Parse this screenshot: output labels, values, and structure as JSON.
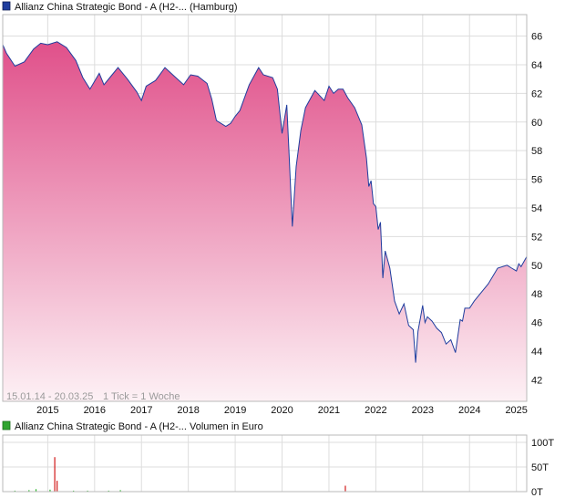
{
  "chart_data": [
    {
      "type": "area",
      "legend": "Allianz China Strategic Bond - A (H2-... (Hamburg)",
      "footer_range": "15.01.14 - 20.03.25",
      "footer_tick": "1 Tick = 1 Woche",
      "x_ticks": [
        "2015",
        "2016",
        "2017",
        "2018",
        "2019",
        "2020",
        "2021",
        "2022",
        "2023",
        "2024",
        "2025"
      ],
      "y_ticks": [
        "66",
        "64",
        "62",
        "60",
        "58",
        "56",
        "54",
        "52",
        "50",
        "48",
        "46",
        "44",
        "42"
      ],
      "ylim": [
        40.5,
        67.5
      ],
      "grid": true,
      "colors": {
        "line": "#1f3d9e",
        "fill_top": "#e0508a",
        "fill_bottom": "#fdf1f5",
        "legend_swatch": "#1f3d9e"
      },
      "series": [
        {
          "x": [
            2014.04,
            2014.12,
            2014.3,
            2014.5,
            2014.7,
            2014.85,
            2015.0,
            2015.2,
            2015.4,
            2015.6,
            2015.75,
            2015.9,
            2016.1,
            2016.2,
            2016.35,
            2016.5,
            2016.7,
            2016.9,
            2017.0,
            2017.1,
            2017.3,
            2017.5,
            2017.7,
            2017.9,
            2018.05,
            2018.2,
            2018.4,
            2018.5,
            2018.6,
            2018.8,
            2018.9,
            2019.0,
            2019.1,
            2019.3,
            2019.5,
            2019.6,
            2019.8,
            2019.9,
            2020.0,
            2020.05,
            2020.1,
            2020.15,
            2020.22,
            2020.3,
            2020.4,
            2020.5,
            2020.7,
            2020.9,
            2021.0,
            2021.1,
            2021.2,
            2021.3,
            2021.4,
            2021.55,
            2021.7,
            2021.8,
            2021.85,
            2021.9,
            2021.95,
            2022.0,
            2022.05,
            2022.1,
            2022.15,
            2022.2,
            2022.3,
            2022.4,
            2022.5,
            2022.6,
            2022.7,
            2022.8,
            2022.85,
            2022.9,
            2022.95,
            2023.0,
            2023.05,
            2023.1,
            2023.2,
            2023.3,
            2023.4,
            2023.5,
            2023.6,
            2023.7,
            2023.8,
            2023.85,
            2023.9,
            2024.0,
            2024.1,
            2024.2,
            2024.4,
            2024.6,
            2024.8,
            2024.9,
            2025.0,
            2025.05,
            2025.1,
            2025.15,
            2025.22
          ],
          "y": [
            65.4,
            64.8,
            63.9,
            64.2,
            65.1,
            65.5,
            65.4,
            65.6,
            65.2,
            64.3,
            63.1,
            62.3,
            63.4,
            62.6,
            63.2,
            63.8,
            63.0,
            62.1,
            61.5,
            62.5,
            62.9,
            63.8,
            63.2,
            62.6,
            63.3,
            63.2,
            62.7,
            61.6,
            60.1,
            59.7,
            59.9,
            60.4,
            60.8,
            62.6,
            63.8,
            63.3,
            63.1,
            62.3,
            59.2,
            60.2,
            61.2,
            57.8,
            52.7,
            56.9,
            59.4,
            61.0,
            62.2,
            61.5,
            62.5,
            62.0,
            62.3,
            62.3,
            61.7,
            61.0,
            59.8,
            57.5,
            55.5,
            55.9,
            54.3,
            54.1,
            52.5,
            53.0,
            49.1,
            51.0,
            49.8,
            47.5,
            46.6,
            47.3,
            45.8,
            45.5,
            43.2,
            45.4,
            46.3,
            47.2,
            46.0,
            46.4,
            46.1,
            45.6,
            45.3,
            44.5,
            44.8,
            43.9,
            46.2,
            46.1,
            47.0,
            47.0,
            47.5,
            47.9,
            48.7,
            49.8,
            50.0,
            49.8,
            49.6,
            50.1,
            49.9,
            50.2,
            50.6
          ]
        }
      ]
    },
    {
      "type": "bar",
      "legend": "Allianz China Strategic Bond - A (H2-... Volumen in Euro",
      "y_ticks": [
        "100T",
        "50T",
        "0T"
      ],
      "ylim": [
        0,
        100
      ],
      "grid": true,
      "colors": {
        "bar_up": "#23b523",
        "bar_down": "#d11a1a",
        "legend_swatch": "#2fa52f"
      },
      "bars": [
        {
          "x": 2014.3,
          "value": 2,
          "color": "up"
        },
        {
          "x": 2014.6,
          "value": 3,
          "color": "up"
        },
        {
          "x": 2014.75,
          "value": 5,
          "color": "up"
        },
        {
          "x": 2015.05,
          "value": 4,
          "color": "up"
        },
        {
          "x": 2015.15,
          "value": 70,
          "color": "down"
        },
        {
          "x": 2015.2,
          "value": 22,
          "color": "down"
        },
        {
          "x": 2015.55,
          "value": 2,
          "color": "up"
        },
        {
          "x": 2015.85,
          "value": 2,
          "color": "up"
        },
        {
          "x": 2016.3,
          "value": 2,
          "color": "up"
        },
        {
          "x": 2016.55,
          "value": 3,
          "color": "up"
        },
        {
          "x": 2021.35,
          "value": 12,
          "color": "down"
        }
      ]
    }
  ]
}
